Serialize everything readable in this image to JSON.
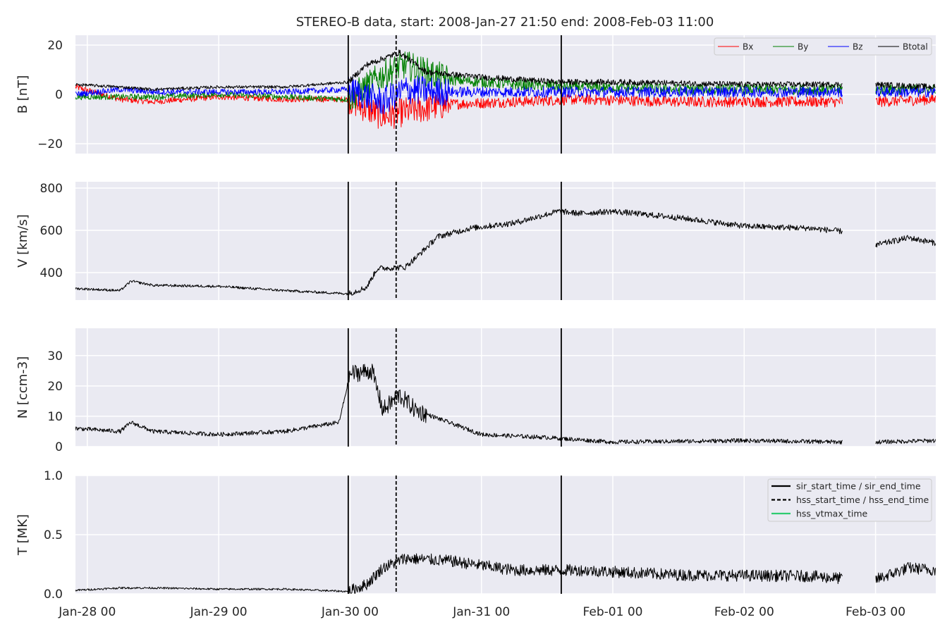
{
  "title": "STEREO-B data, start: 2008-Jan-27 21:50  end: 2008-Feb-03 11:00",
  "colors": {
    "panel_bg": "#eaeaf2",
    "grid": "#ffffff",
    "bx": "#ff0000",
    "by": "#008000",
    "bz": "#0000ff",
    "btotal": "#000000",
    "hss_vtmax": "#2ecc71"
  },
  "x_axis": {
    "start": "2008-01-27 21:50",
    "end": "2008-02-03 11:00",
    "tick_dates": [
      "2008-01-28 00:00",
      "2008-01-29 00:00",
      "2008-01-30 00:00",
      "2008-01-31 00:00",
      "2008-02-01 00:00",
      "2008-02-02 00:00",
      "2008-02-03 00:00"
    ],
    "tick_labels": [
      "Jan-28 00",
      "Jan-29 00",
      "Jan-30 00",
      "Jan-31 00",
      "Feb-01 00",
      "Feb-02 00",
      "Feb-03 00"
    ]
  },
  "event_lines": [
    {
      "time": "2008-01-29 23:40",
      "style": "solid"
    },
    {
      "time": "2008-01-30 08:25",
      "style": "dashed"
    },
    {
      "time": "2008-01-31 14:35",
      "style": "solid"
    }
  ],
  "data_gap": {
    "start": "2008-02-02 18:00",
    "end": "2008-02-03 00:00"
  },
  "legend_b": [
    "Bx",
    "By",
    "Bz",
    "Btotal"
  ],
  "legend_events": [
    "sir_start_time / sir_end_time",
    "hss_start_time / hss_end_time",
    "hss_vtmax_time"
  ],
  "chart_data": [
    {
      "type": "line",
      "ylabel": "B [nT]",
      "ylim": [
        -24,
        24
      ],
      "yticks": [
        -20,
        0,
        20
      ],
      "ytick_labels": [
        "−20",
        "0",
        "20"
      ],
      "grid": true,
      "legend": "top-right",
      "series": [
        {
          "name": "Bx",
          "color": "#ff0000",
          "x": [
            "2008-01-27 21:50",
            "2008-01-28 06:00",
            "2008-01-28 12:00",
            "2008-01-29 00:00",
            "2008-01-29 12:00",
            "2008-01-29 23:40",
            "2008-01-30 06:00",
            "2008-01-30 10:00",
            "2008-01-30 18:00",
            "2008-01-31 06:00",
            "2008-01-31 18:00",
            "2008-02-01 12:00",
            "2008-02-02 12:00",
            "2008-02-02 18:00",
            "2008-02-03 00:00",
            "2008-02-03 11:00"
          ],
          "y": [
            3,
            -2,
            -3,
            -1,
            -2,
            -2,
            -9,
            -7,
            -4,
            -3,
            -2,
            -3,
            -3,
            -3,
            -3,
            -2
          ]
        },
        {
          "name": "By",
          "color": "#008000",
          "x": [
            "2008-01-27 21:50",
            "2008-01-28 06:00",
            "2008-01-28 12:00",
            "2008-01-29 00:00",
            "2008-01-29 12:00",
            "2008-01-29 23:40",
            "2008-01-30 06:00",
            "2008-01-30 10:00",
            "2008-01-30 18:00",
            "2008-01-31 06:00",
            "2008-01-31 18:00",
            "2008-02-01 12:00",
            "2008-02-02 12:00",
            "2008-02-02 18:00",
            "2008-02-03 00:00",
            "2008-02-03 11:00"
          ],
          "y": [
            -1,
            -1,
            -1,
            0,
            -1,
            -2,
            8,
            12,
            6,
            4,
            3,
            2,
            2,
            2,
            2,
            2
          ]
        },
        {
          "name": "Bz",
          "color": "#0000ff",
          "x": [
            "2008-01-27 21:50",
            "2008-01-28 06:00",
            "2008-01-28 12:00",
            "2008-01-29 00:00",
            "2008-01-29 12:00",
            "2008-01-29 23:40",
            "2008-01-30 06:00",
            "2008-01-30 10:00",
            "2008-01-30 18:00",
            "2008-01-31 06:00",
            "2008-01-31 18:00",
            "2008-02-01 12:00",
            "2008-02-02 12:00",
            "2008-02-02 18:00",
            "2008-02-03 00:00",
            "2008-02-03 11:00"
          ],
          "y": [
            0,
            2,
            1,
            1,
            1,
            2,
            -3,
            2,
            1,
            1,
            1,
            1,
            1,
            1,
            1,
            1
          ]
        },
        {
          "name": "Btotal",
          "color": "#000000",
          "x": [
            "2008-01-27 21:50",
            "2008-01-28 06:00",
            "2008-01-28 12:00",
            "2008-01-29 00:00",
            "2008-01-29 12:00",
            "2008-01-29 23:40",
            "2008-01-30 03:00",
            "2008-01-30 09:00",
            "2008-01-30 14:00",
            "2008-01-31 00:00",
            "2008-01-31 14:00",
            "2008-02-01 00:00",
            "2008-02-02 00:00",
            "2008-02-02 18:00",
            "2008-02-03 00:00",
            "2008-02-03 11:00"
          ],
          "y": [
            4,
            3,
            2,
            3,
            3,
            5,
            12,
            17,
            9,
            7,
            5,
            5,
            4,
            4,
            4,
            3
          ]
        }
      ]
    },
    {
      "type": "line",
      "ylabel": "V [km/s]",
      "ylim": [
        270,
        830
      ],
      "yticks": [
        400,
        600,
        800
      ],
      "ytick_labels": [
        "400",
        "600",
        "800"
      ],
      "grid": true,
      "series": [
        {
          "name": "V",
          "color": "#000000",
          "x": [
            "2008-01-27 21:50",
            "2008-01-28 06:00",
            "2008-01-28 08:00",
            "2008-01-28 12:00",
            "2008-01-29 00:00",
            "2008-01-29 12:00",
            "2008-01-29 23:40",
            "2008-01-30 03:00",
            "2008-01-30 05:00",
            "2008-01-30 10:00",
            "2008-01-30 12:00",
            "2008-01-30 16:00",
            "2008-01-30 22:00",
            "2008-01-31 06:00",
            "2008-01-31 14:00",
            "2008-01-31 18:00",
            "2008-02-01 00:00",
            "2008-02-01 12:00",
            "2008-02-02 00:00",
            "2008-02-02 12:00",
            "2008-02-02 18:00",
            "2008-02-03 00:00",
            "2008-02-03 06:00",
            "2008-02-03 11:00"
          ],
          "y": [
            325,
            315,
            360,
            340,
            335,
            315,
            300,
            330,
            420,
            425,
            470,
            570,
            610,
            635,
            690,
            680,
            690,
            660,
            620,
            610,
            595,
            530,
            565,
            540
          ]
        }
      ]
    },
    {
      "type": "line",
      "ylabel": "N [ccm-3]",
      "ylim": [
        0,
        39
      ],
      "yticks": [
        0,
        10,
        20,
        30
      ],
      "ytick_labels": [
        "0",
        "10",
        "20",
        "30"
      ],
      "grid": true,
      "series": [
        {
          "name": "N",
          "color": "#000000",
          "x": [
            "2008-01-27 21:50",
            "2008-01-28 06:00",
            "2008-01-28 08:00",
            "2008-01-28 12:00",
            "2008-01-29 00:00",
            "2008-01-29 12:00",
            "2008-01-29 22:00",
            "2008-01-30 00:00",
            "2008-01-30 04:00",
            "2008-01-30 06:00",
            "2008-01-30 09:00",
            "2008-01-30 12:00",
            "2008-01-30 18:00",
            "2008-01-31 00:00",
            "2008-01-31 12:00",
            "2008-02-01 00:00",
            "2008-02-02 00:00",
            "2008-02-02 18:00",
            "2008-02-03 00:00",
            "2008-02-03 11:00"
          ],
          "y": [
            6,
            5,
            8,
            5,
            4,
            5,
            8,
            24,
            25,
            12,
            17,
            12,
            8,
            4,
            3,
            1.5,
            2,
            1.5,
            1.5,
            2
          ]
        }
      ]
    },
    {
      "type": "line",
      "ylabel": "T [MK]",
      "ylim": [
        0,
        1.0
      ],
      "yticks": [
        0.0,
        0.5,
        1.0
      ],
      "ytick_labels": [
        "0.0",
        "0.5",
        "1.0"
      ],
      "grid": true,
      "legend": "top-right",
      "series": [
        {
          "name": "T",
          "color": "#000000",
          "x": [
            "2008-01-27 21:50",
            "2008-01-28 06:00",
            "2008-01-28 12:00",
            "2008-01-29 00:00",
            "2008-01-29 12:00",
            "2008-01-29 23:40",
            "2008-01-30 03:00",
            "2008-01-30 06:00",
            "2008-01-30 10:00",
            "2008-01-30 18:00",
            "2008-01-31 06:00",
            "2008-01-31 18:00",
            "2008-02-01 12:00",
            "2008-02-02 12:00",
            "2008-02-02 18:00",
            "2008-02-03 00:00",
            "2008-02-03 06:00",
            "2008-02-03 11:00"
          ],
          "y": [
            0.03,
            0.05,
            0.05,
            0.04,
            0.04,
            0.02,
            0.08,
            0.22,
            0.3,
            0.28,
            0.2,
            0.2,
            0.16,
            0.15,
            0.13,
            0.12,
            0.22,
            0.2
          ]
        }
      ]
    }
  ]
}
